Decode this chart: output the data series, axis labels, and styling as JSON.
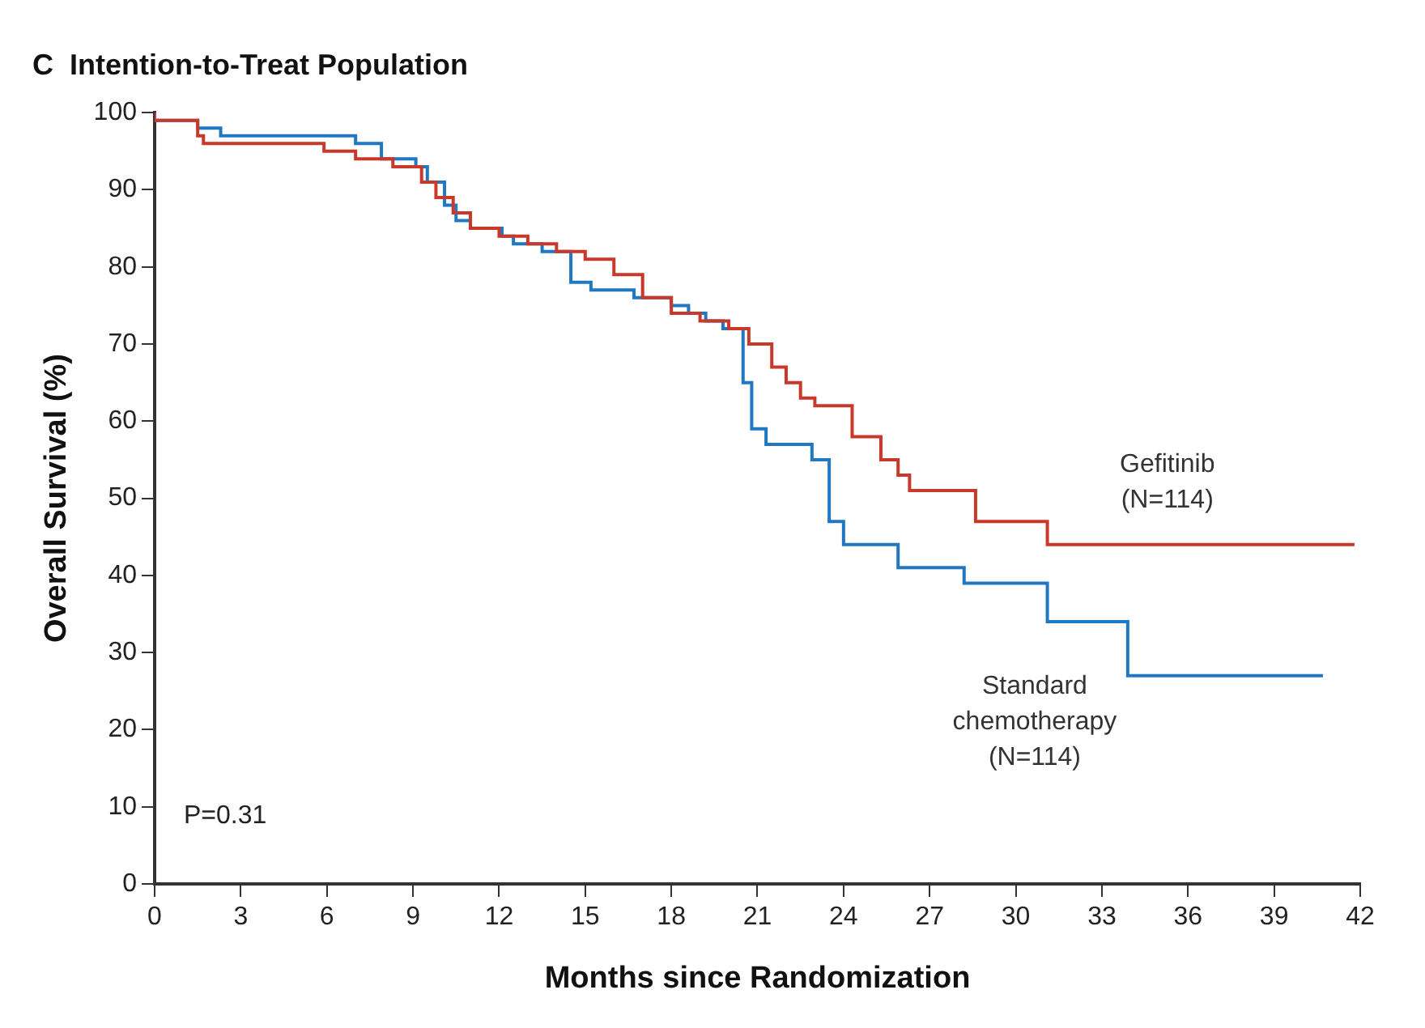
{
  "chart_data": {
    "type": "step",
    "title": "C  Intention-to-Treat Population",
    "xlabel": "Months since Randomization",
    "ylabel": "Overall Survival (%)",
    "xlim": [
      0,
      42
    ],
    "xticks": [
      0,
      3,
      6,
      9,
      12,
      15,
      18,
      21,
      24,
      27,
      30,
      33,
      36,
      39,
      42
    ],
    "ylim": [
      0,
      100
    ],
    "yticks": [
      0,
      10,
      20,
      30,
      40,
      50,
      60,
      70,
      80,
      90,
      100
    ],
    "grid": false,
    "legend": false,
    "marker": "none",
    "line_style": "solid",
    "annotations": [
      "P=0.31"
    ],
    "series": [
      {
        "name": "Gefitinib (N=114)",
        "color": "#c8392b",
        "x": [
          0,
          1.5,
          1.7,
          4.3,
          5.9,
          7,
          8.3,
          9.3,
          9.8,
          10.4,
          11,
          12,
          13,
          14,
          15,
          16,
          17,
          18,
          19,
          20,
          20.7,
          21.5,
          22,
          22.5,
          23,
          24.3,
          25.3,
          25.9,
          26.3,
          28.6,
          31.1,
          33.6,
          41.8
        ],
        "values": [
          100,
          99,
          97,
          96,
          96,
          95,
          94,
          93,
          91,
          89,
          87,
          85,
          84,
          83,
          82,
          81,
          79,
          76,
          74,
          73,
          72,
          70,
          67,
          65,
          63,
          62,
          58,
          55,
          53,
          51,
          47,
          44,
          44
        ]
      },
      {
        "name": "Standard chemotherapy (N=114)",
        "color": "#1f78c1",
        "x": [
          0,
          1.5,
          2.3,
          7,
          7.9,
          9.1,
          9.5,
          10.1,
          10.5,
          11,
          12.1,
          12.5,
          13.5,
          14.5,
          15.2,
          16.7,
          18,
          18.6,
          19.2,
          19.8,
          20.5,
          20.8,
          21.3,
          22.9,
          23.5,
          24,
          25.9,
          28.2,
          31.1,
          33.9,
          35.6,
          40.7
        ],
        "values": [
          100,
          99,
          98,
          97,
          96,
          94,
          93,
          91,
          88,
          86,
          85,
          84,
          83,
          82,
          78,
          77,
          76,
          75,
          74,
          73,
          72,
          65,
          59,
          57,
          55,
          47,
          44,
          41,
          39,
          34,
          27,
          27
        ]
      }
    ]
  }
}
